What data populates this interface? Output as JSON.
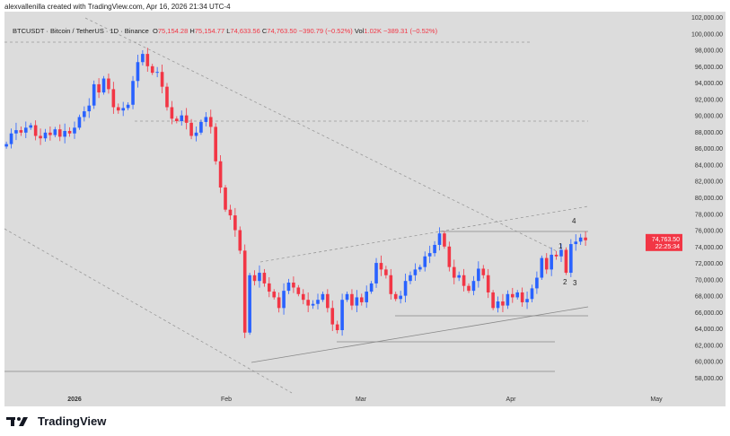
{
  "credit": "alexvallenilla created with TradingView.com, Apr 16, 2026 21:34 UTC-4",
  "legend": {
    "symbol": "BTCUSDT · Bitcoin / TetherUS · 1D · Binance",
    "o_label": "O",
    "o": "75,154.28",
    "h_label": "H",
    "h": "75,154.77",
    "l_label": "L",
    "l": "74,633.56",
    "c_label": "C",
    "c": "74,763.50",
    "change": "−390.79 (−0.52%)",
    "vol_label": "Vol",
    "vol": "1.02K",
    "vol_change": "−389.31 (−0.52%)"
  },
  "price_axis": {
    "ticks": [
      "102,000.00",
      "100,000.00",
      "98,000.00",
      "96,000.00",
      "94,000.00",
      "92,000.00",
      "90,000.00",
      "88,000.00",
      "86,000.00",
      "84,000.00",
      "82,000.00",
      "80,000.00",
      "78,000.00",
      "76,000.00",
      "74,000.00",
      "72,000.00",
      "70,000.00",
      "68,000.00",
      "66,000.00",
      "64,000.00",
      "62,000.00",
      "60,000.00",
      "58,000.00"
    ],
    "last_price": "74,763.50",
    "countdown": "22:25:34"
  },
  "time_axis": [
    "2026",
    "Feb",
    "Mar",
    "Apr",
    "May"
  ],
  "annotations": [
    "1",
    "2",
    "3",
    "4"
  ],
  "brand": "TradingView",
  "colors": {
    "up": "#2962ff",
    "down": "#f23645",
    "background": "#dcdcdc"
  },
  "chart_data": {
    "type": "candlestick",
    "start_date": "2025-12-18",
    "interval": "1D",
    "ylim": [
      56000,
      102000
    ],
    "closes": [
      86500,
      87800,
      88200,
      87900,
      88500,
      88800,
      87500,
      87200,
      87900,
      87600,
      88300,
      87400,
      88100,
      87800,
      88500,
      89800,
      90500,
      91200,
      93800,
      92800,
      94500,
      93200,
      91000,
      90600,
      90900,
      91300,
      94200,
      96500,
      97500,
      96000,
      95200,
      95300,
      93500,
      91000,
      89600,
      89300,
      90000,
      89100,
      87500,
      87900,
      89200,
      89800,
      88600,
      84400,
      81200,
      78500,
      77800,
      76000,
      73500,
      63500,
      70500,
      69800,
      70800,
      69500,
      68500,
      67800,
      66500,
      68600,
      69600,
      69000,
      68200,
      67500,
      66800,
      67000,
      67500,
      68200,
      66500,
      64500,
      63800,
      67500,
      68200,
      66800,
      67800,
      67200,
      68500,
      69500,
      72000,
      71200,
      70500,
      68200,
      67600,
      68000,
      69800,
      70500,
      71200,
      71500,
      72800,
      73200,
      74200,
      75600,
      74000,
      71500,
      70200,
      70500,
      69200,
      68600,
      69800,
      71300,
      70500,
      68400,
      66500,
      67300,
      66800,
      68200,
      67800,
      68400,
      67200,
      67600,
      68900,
      70200,
      72600,
      71200,
      73000,
      72800,
      73600,
      70800,
      74300,
      74600,
      75100,
      74763.5
    ]
  }
}
